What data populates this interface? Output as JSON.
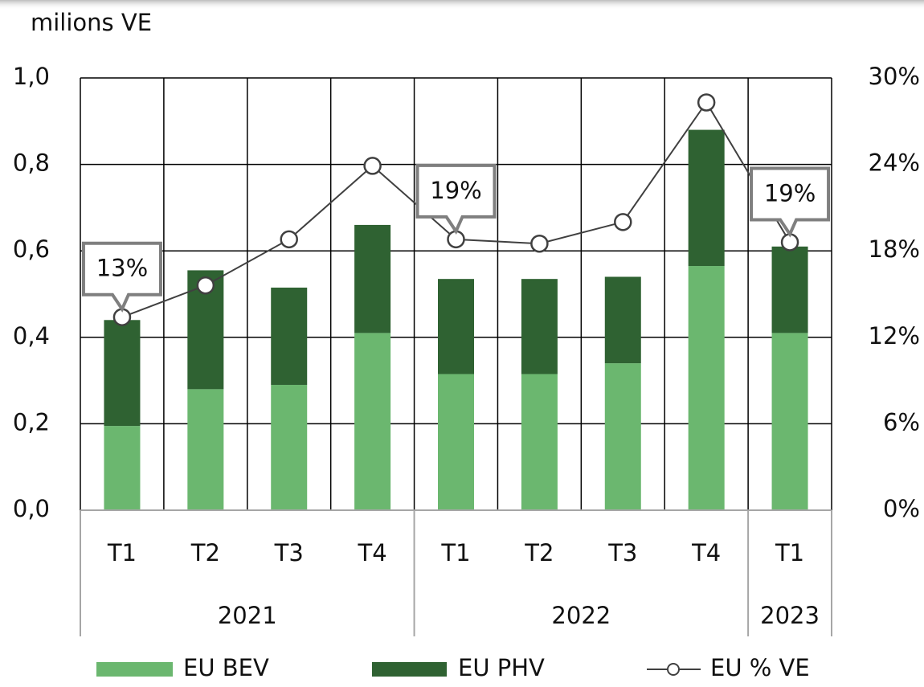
{
  "chart_data": {
    "type": "stacked-bar-line",
    "y_label": "milions VE",
    "categories": [
      "T1",
      "T2",
      "T3",
      "T4",
      "T1",
      "T2",
      "T3",
      "T4",
      "T1"
    ],
    "groups": [
      {
        "label": "2021",
        "count": 4
      },
      {
        "label": "2022",
        "count": 4
      },
      {
        "label": "2023",
        "count": 1
      }
    ],
    "series": [
      {
        "name": "EU BEV",
        "color": "#6bb76f",
        "values": [
          0.195,
          0.28,
          0.29,
          0.41,
          0.315,
          0.315,
          0.34,
          0.565,
          0.41
        ]
      },
      {
        "name": "EU PHV",
        "color": "#2f6232",
        "values": [
          0.245,
          0.275,
          0.225,
          0.25,
          0.22,
          0.22,
          0.2,
          0.315,
          0.2
        ]
      },
      {
        "name": "EU % VE",
        "color": "#404040",
        "axis": "y2",
        "values": [
          13.4,
          15.6,
          18.8,
          23.9,
          18.8,
          18.5,
          20.0,
          28.3,
          18.6
        ],
        "value_labels": [
          "13%",
          null,
          null,
          null,
          "19%",
          null,
          null,
          null,
          "19%"
        ]
      }
    ],
    "ylim": [
      0,
      1.0
    ],
    "yticks": [
      {
        "value": 0,
        "label": "0,0"
      },
      {
        "value": 0.2,
        "label": "0,2"
      },
      {
        "value": 0.4,
        "label": "0,4"
      },
      {
        "value": 0.6,
        "label": "0,6"
      },
      {
        "value": 0.8,
        "label": "0,8"
      },
      {
        "value": 1.0,
        "label": "1,0"
      }
    ],
    "y2lim": [
      0,
      30
    ],
    "y2ticks": [
      {
        "value": 0,
        "label": "0%"
      },
      {
        "value": 6,
        "label": "6%"
      },
      {
        "value": 12,
        "label": "12%"
      },
      {
        "value": 18,
        "label": "18%"
      },
      {
        "value": 24,
        "label": "24%"
      },
      {
        "value": 30,
        "label": "30%"
      }
    ],
    "grid": true,
    "legend": "bottom"
  }
}
